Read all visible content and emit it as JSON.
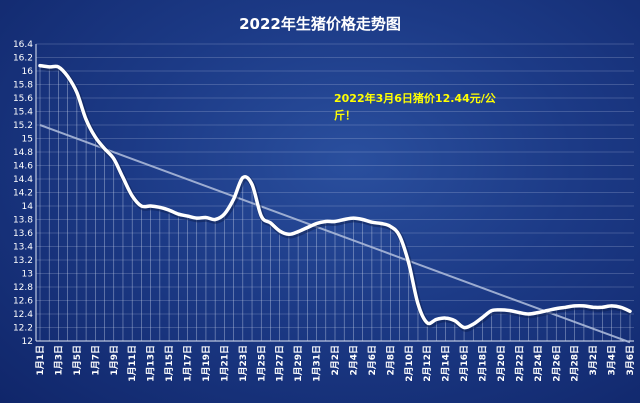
{
  "chart_data": {
    "type": "line",
    "title": "2022年生猪价格走势图",
    "xlabel": "",
    "ylabel": "",
    "ylim": [
      12,
      16.4
    ],
    "yticks": [
      12,
      12.2,
      12.4,
      12.6,
      12.8,
      13,
      13.2,
      13.4,
      13.6,
      13.8,
      14,
      14.2,
      14.4,
      14.6,
      14.8,
      15,
      15.2,
      15.4,
      15.6,
      15.8,
      16,
      16.2,
      16.4
    ],
    "ytick_labels": [
      "12",
      "12.2",
      "12.4",
      "12.6",
      "12.8",
      "13",
      "13.2",
      "13.4",
      "13.6",
      "13.8",
      "14",
      "14.2",
      "14.4",
      "14.6",
      "14.8",
      "15",
      "15.2",
      "15.4",
      "15.6",
      "15.8",
      "16",
      "16.2",
      "16.4"
    ],
    "categories": [
      "1月1日",
      "1月2日",
      "1月3日",
      "1月4日",
      "1月5日",
      "1月6日",
      "1月7日",
      "1月8日",
      "1月9日",
      "1月10日",
      "1月11日",
      "1月12日",
      "1月13日",
      "1月14日",
      "1月15日",
      "1月16日",
      "1月17日",
      "1月18日",
      "1月19日",
      "1月20日",
      "1月21日",
      "1月22日",
      "1月23日",
      "1月24日",
      "1月25日",
      "1月26日",
      "1月27日",
      "1月28日",
      "1月29日",
      "1月30日",
      "1月31日",
      "2月1日",
      "2月2日",
      "2月3日",
      "2月4日",
      "2月5日",
      "2月6日",
      "2月7日",
      "2月8日",
      "2月9日",
      "2月10日",
      "2月11日",
      "2月12日",
      "2月13日",
      "2月14日",
      "2月15日",
      "2月16日",
      "2月17日",
      "2月18日",
      "2月19日",
      "2月20日",
      "2月21日",
      "2月22日",
      "2月23日",
      "2月24日",
      "2月25日",
      "2月26日",
      "2月27日",
      "2月28日",
      "3月1日",
      "3月2日",
      "3月3日",
      "3月4日",
      "3月5日",
      "3月6日"
    ],
    "tick_labels_shown": [
      "1月1日",
      "1月3日",
      "1月5日",
      "1月7日",
      "1月9日",
      "1月11日",
      "1月13日",
      "1月15日",
      "1月17日",
      "1月19日",
      "1月21日",
      "1月23日",
      "1月25日",
      "1月27日",
      "1月29日",
      "1月31日",
      "2月2日",
      "2月4日",
      "2月6日",
      "2月8日",
      "2月10日",
      "2月12日",
      "2月14日",
      "2月16日",
      "2月18日",
      "2月20日",
      "2月22日",
      "2月24日",
      "2月26日",
      "2月28日",
      "3月2日",
      "3月4日",
      "3月6日"
    ],
    "series": [
      {
        "values": [
          16.08,
          16.06,
          16.06,
          15.92,
          15.68,
          15.28,
          15.02,
          14.85,
          14.7,
          14.42,
          14.15,
          14.0,
          14.0,
          13.98,
          13.94,
          13.88,
          13.85,
          13.82,
          13.83,
          13.8,
          13.88,
          14.1,
          14.42,
          14.32,
          13.85,
          13.75,
          13.63,
          13.58,
          13.62,
          13.68,
          13.74,
          13.77,
          13.77,
          13.8,
          13.82,
          13.8,
          13.76,
          13.74,
          13.7,
          13.56,
          13.15,
          12.55,
          12.27,
          12.32,
          12.34,
          12.3,
          12.2,
          12.25,
          12.35,
          12.45,
          12.46,
          12.45,
          12.42,
          12.4,
          12.42,
          12.45,
          12.48,
          12.5,
          12.52,
          12.52,
          12.5,
          12.5,
          12.52,
          12.5,
          12.44
        ]
      }
    ],
    "trendline": {
      "start": 15.2,
      "end": 11.98
    },
    "grid": {
      "horizontal": true,
      "vertical": true
    },
    "legend": "none",
    "annotation": {
      "line1": "2022年3月6日猪价12.44元/公",
      "line2": "斤！"
    },
    "colors": {
      "background": "#1c3a86",
      "line": "#ffffff",
      "trend": "#aab8d8",
      "annotation": "#ffff00",
      "grid": "#c8d2ea"
    }
  }
}
